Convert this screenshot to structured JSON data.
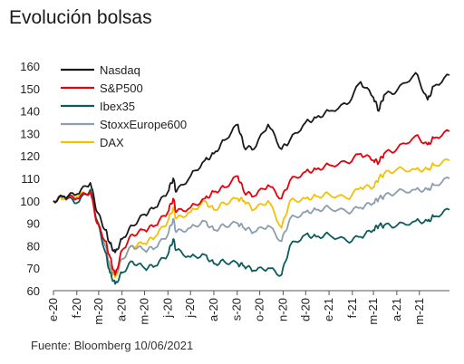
{
  "title": "Evolución bolsas",
  "source": "Fuente: Bloomberg 10/06/2021",
  "chart_data": {
    "type": "line",
    "title": "Evolución bolsas",
    "xlabel": "",
    "ylabel": "",
    "ylim": [
      60,
      160
    ],
    "yticks": [
      60,
      70,
      80,
      90,
      100,
      110,
      120,
      130,
      140,
      150,
      160
    ],
    "xlim": [
      "2020-01-01",
      "2021-06-10"
    ],
    "xticks": [
      {
        "date": "2020-01-01",
        "label": "e-20"
      },
      {
        "date": "2020-02-01",
        "label": "f-20"
      },
      {
        "date": "2020-03-01",
        "label": "m-20"
      },
      {
        "date": "2020-04-01",
        "label": "a-20"
      },
      {
        "date": "2020-05-01",
        "label": "m-20"
      },
      {
        "date": "2020-06-01",
        "label": "j-20"
      },
      {
        "date": "2020-07-01",
        "label": "j-20"
      },
      {
        "date": "2020-08-01",
        "label": "a-20"
      },
      {
        "date": "2020-09-01",
        "label": "s-20"
      },
      {
        "date": "2020-10-01",
        "label": "o-20"
      },
      {
        "date": "2020-11-01",
        "label": "n-20"
      },
      {
        "date": "2020-12-01",
        "label": "d-20"
      },
      {
        "date": "2021-01-01",
        "label": "e-21"
      },
      {
        "date": "2021-02-01",
        "label": "f-21"
      },
      {
        "date": "2021-03-01",
        "label": "m-21"
      },
      {
        "date": "2021-04-01",
        "label": "a-21"
      },
      {
        "date": "2021-05-01",
        "label": "m-21"
      }
    ],
    "legend_position": "top-left",
    "series": [
      {
        "name": "Nasdaq",
        "color": "#1a1a1a",
        "x": [
          "2020-01-01",
          "2020-01-15",
          "2020-02-01",
          "2020-02-19",
          "2020-02-28",
          "2020-03-10",
          "2020-03-16",
          "2020-03-23",
          "2020-04-01",
          "2020-04-15",
          "2020-05-01",
          "2020-05-15",
          "2020-06-01",
          "2020-06-08",
          "2020-06-12",
          "2020-07-01",
          "2020-07-20",
          "2020-08-01",
          "2020-08-15",
          "2020-09-02",
          "2020-09-10",
          "2020-09-23",
          "2020-10-12",
          "2020-10-30",
          "2020-11-10",
          "2020-12-01",
          "2020-12-15",
          "2021-01-01",
          "2021-01-25",
          "2021-02-12",
          "2021-03-01",
          "2021-03-08",
          "2021-03-15",
          "2021-04-01",
          "2021-04-26",
          "2021-05-12",
          "2021-05-20",
          "2021-06-10"
        ],
        "y": [
          100,
          102,
          103,
          108,
          95,
          87,
          81,
          77,
          83,
          89,
          94,
          97,
          104,
          110,
          104,
          111,
          118,
          121,
          127,
          134,
          124,
          123,
          134,
          123,
          127,
          135,
          137,
          140,
          143,
          153,
          146,
          140,
          147,
          149,
          157,
          145,
          151,
          156
        ]
      },
      {
        "name": "S&P500",
        "color": "#e8000b",
        "x": [
          "2020-01-01",
          "2020-01-15",
          "2020-02-01",
          "2020-02-19",
          "2020-02-28",
          "2020-03-10",
          "2020-03-16",
          "2020-03-23",
          "2020-04-01",
          "2020-04-15",
          "2020-05-01",
          "2020-05-15",
          "2020-06-01",
          "2020-06-08",
          "2020-06-12",
          "2020-07-01",
          "2020-07-20",
          "2020-08-01",
          "2020-08-15",
          "2020-09-02",
          "2020-09-10",
          "2020-09-23",
          "2020-10-12",
          "2020-10-30",
          "2020-11-10",
          "2020-12-01",
          "2020-12-15",
          "2021-01-01",
          "2021-01-25",
          "2021-02-12",
          "2021-03-01",
          "2021-03-08",
          "2021-03-15",
          "2021-04-01",
          "2021-04-26",
          "2021-05-12",
          "2021-05-20",
          "2021-06-10"
        ],
        "y": [
          100,
          102,
          101,
          104,
          90,
          82,
          75,
          67,
          78,
          85,
          87,
          89,
          95,
          101,
          95,
          97,
          101,
          104,
          106,
          111,
          104,
          102,
          107,
          101,
          109,
          113,
          114,
          116,
          117,
          121,
          118,
          117,
          121,
          123,
          129,
          125,
          128,
          131
        ]
      },
      {
        "name": "Ibex35",
        "color": "#0e5b5d",
        "x": [
          "2020-01-01",
          "2020-01-15",
          "2020-02-01",
          "2020-02-19",
          "2020-02-28",
          "2020-03-10",
          "2020-03-16",
          "2020-03-23",
          "2020-04-01",
          "2020-04-15",
          "2020-05-01",
          "2020-05-15",
          "2020-06-01",
          "2020-06-08",
          "2020-06-12",
          "2020-07-01",
          "2020-07-20",
          "2020-08-01",
          "2020-08-15",
          "2020-09-02",
          "2020-09-10",
          "2020-09-23",
          "2020-10-12",
          "2020-10-30",
          "2020-11-10",
          "2020-12-01",
          "2020-12-15",
          "2021-01-01",
          "2021-01-25",
          "2021-02-12",
          "2021-03-01",
          "2021-03-08",
          "2021-03-15",
          "2021-04-01",
          "2021-04-26",
          "2021-05-12",
          "2021-05-20",
          "2021-06-10"
        ],
        "y": [
          100,
          102,
          99,
          105,
          91,
          77,
          68,
          63,
          68,
          73,
          70,
          71,
          76,
          83,
          78,
          75,
          76,
          72,
          73,
          72,
          71,
          69,
          70,
          67,
          80,
          85,
          84,
          85,
          82,
          84,
          87,
          89,
          89,
          89,
          91,
          91,
          93,
          96
        ]
      },
      {
        "name": "StoxxEurope600",
        "color": "#8b9daf",
        "x": [
          "2020-01-01",
          "2020-01-15",
          "2020-02-01",
          "2020-02-19",
          "2020-02-28",
          "2020-03-10",
          "2020-03-16",
          "2020-03-23",
          "2020-04-01",
          "2020-04-15",
          "2020-05-01",
          "2020-05-15",
          "2020-06-01",
          "2020-06-08",
          "2020-06-12",
          "2020-07-01",
          "2020-07-20",
          "2020-08-01",
          "2020-08-15",
          "2020-09-02",
          "2020-09-10",
          "2020-09-23",
          "2020-10-12",
          "2020-10-30",
          "2020-11-10",
          "2020-12-01",
          "2020-12-15",
          "2021-01-01",
          "2021-01-25",
          "2021-02-12",
          "2021-03-01",
          "2021-03-08",
          "2021-03-15",
          "2021-04-01",
          "2021-04-26",
          "2021-05-12",
          "2021-05-20",
          "2021-06-10"
        ],
        "y": [
          100,
          102,
          101,
          104,
          90,
          80,
          71,
          67,
          74,
          80,
          78,
          79,
          85,
          92,
          86,
          88,
          91,
          87,
          89,
          90,
          88,
          86,
          89,
          82,
          92,
          95,
          96,
          97,
          95,
          97,
          99,
          101,
          102,
          104,
          105,
          105,
          107,
          110
        ]
      },
      {
        "name": "DAX",
        "color": "#f5c000",
        "x": [
          "2020-01-01",
          "2020-01-15",
          "2020-02-01",
          "2020-02-19",
          "2020-02-28",
          "2020-03-10",
          "2020-03-16",
          "2020-03-23",
          "2020-04-01",
          "2020-04-15",
          "2020-05-01",
          "2020-05-15",
          "2020-06-01",
          "2020-06-08",
          "2020-06-12",
          "2020-07-01",
          "2020-07-20",
          "2020-08-01",
          "2020-08-15",
          "2020-09-02",
          "2020-09-10",
          "2020-09-23",
          "2020-10-12",
          "2020-10-30",
          "2020-11-10",
          "2020-12-01",
          "2020-12-15",
          "2021-01-01",
          "2021-01-25",
          "2021-02-12",
          "2021-03-01",
          "2021-03-08",
          "2021-03-15",
          "2021-04-01",
          "2021-04-26",
          "2021-05-12",
          "2021-05-20",
          "2021-06-10"
        ],
        "y": [
          100,
          101,
          102,
          104,
          91,
          80,
          70,
          66,
          74,
          80,
          81,
          84,
          91,
          97,
          92,
          95,
          100,
          96,
          99,
          101,
          100,
          96,
          100,
          88,
          100,
          101,
          102,
          103,
          101,
          106,
          106,
          110,
          112,
          114,
          114,
          114,
          116,
          118
        ]
      }
    ]
  }
}
